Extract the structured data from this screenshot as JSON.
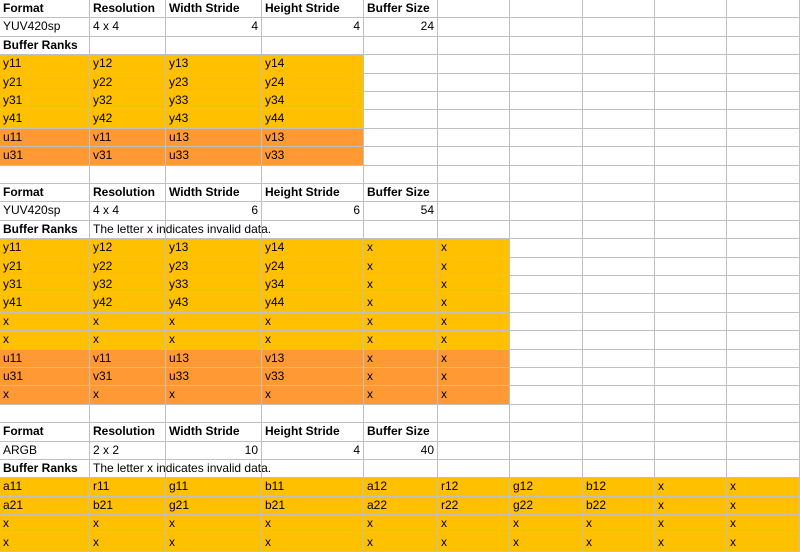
{
  "colors": {
    "luma": "#ffc000",
    "chroma": "#ff9933",
    "grid": "#c0c0c0"
  },
  "sheet": {
    "rows": [
      {
        "cells": [
          {
            "text": "Format",
            "b": 1
          },
          {
            "text": "Resolution",
            "b": 1
          },
          {
            "text": "Width Stride",
            "b": 1
          },
          {
            "text": "Height Stride",
            "b": 1
          },
          {
            "text": "Buffer Size",
            "b": 1
          }
        ]
      },
      {
        "cells": [
          {
            "text": "YUV420sp"
          },
          {
            "text": "4 x 4"
          },
          {
            "text": "4",
            "num": 1
          },
          {
            "text": "4",
            "num": 1
          },
          {
            "text": "24",
            "num": 1
          }
        ]
      },
      {
        "cells": [
          {
            "text": "Buffer Ranks",
            "b": 1
          }
        ]
      },
      {
        "cells": [
          {
            "text": "y11",
            "f": "y"
          },
          {
            "text": "y12",
            "f": "y"
          },
          {
            "text": "y13",
            "f": "y"
          },
          {
            "text": "y14",
            "f": "y"
          }
        ]
      },
      {
        "cells": [
          {
            "text": "y21",
            "f": "y"
          },
          {
            "text": "y22",
            "f": "y"
          },
          {
            "text": "y23",
            "f": "y"
          },
          {
            "text": "y24",
            "f": "y"
          }
        ]
      },
      {
        "cells": [
          {
            "text": "y31",
            "f": "y"
          },
          {
            "text": "y32",
            "f": "y"
          },
          {
            "text": "y33",
            "f": "y"
          },
          {
            "text": "y34",
            "f": "y"
          }
        ]
      },
      {
        "cells": [
          {
            "text": "y41",
            "f": "y"
          },
          {
            "text": "y42",
            "f": "y"
          },
          {
            "text": "y43",
            "f": "y"
          },
          {
            "text": "y44",
            "f": "y"
          }
        ]
      },
      {
        "cells": [
          {
            "text": "u11",
            "f": "u"
          },
          {
            "text": "v11",
            "f": "u"
          },
          {
            "text": "u13",
            "f": "u"
          },
          {
            "text": "v13",
            "f": "u"
          }
        ]
      },
      {
        "cells": [
          {
            "text": "u31",
            "f": "u"
          },
          {
            "text": "v31",
            "f": "u"
          },
          {
            "text": "u33",
            "f": "u"
          },
          {
            "text": "v33",
            "f": "u"
          }
        ]
      },
      {
        "cells": []
      },
      {
        "cells": [
          {
            "text": "Format",
            "b": 1
          },
          {
            "text": "Resolution",
            "b": 1
          },
          {
            "text": "Width Stride",
            "b": 1
          },
          {
            "text": "Height Stride",
            "b": 1
          },
          {
            "text": "Buffer Size",
            "b": 1
          }
        ]
      },
      {
        "cells": [
          {
            "text": "YUV420sp"
          },
          {
            "text": "4 x 4"
          },
          {
            "text": "6",
            "num": 1
          },
          {
            "text": "6",
            "num": 1
          },
          {
            "text": "54",
            "num": 1
          }
        ]
      },
      {
        "cells": [
          {
            "text": "Buffer Ranks",
            "b": 1
          },
          {
            "text": "The letter x indicates invalid data."
          }
        ]
      },
      {
        "cells": [
          {
            "text": "y11",
            "f": "y"
          },
          {
            "text": "y12",
            "f": "y"
          },
          {
            "text": "y13",
            "f": "y"
          },
          {
            "text": "y14",
            "f": "y"
          },
          {
            "text": "x",
            "f": "y"
          },
          {
            "text": "x",
            "f": "y"
          }
        ]
      },
      {
        "cells": [
          {
            "text": "y21",
            "f": "y"
          },
          {
            "text": "y22",
            "f": "y"
          },
          {
            "text": "y23",
            "f": "y"
          },
          {
            "text": "y24",
            "f": "y"
          },
          {
            "text": "x",
            "f": "y"
          },
          {
            "text": "x",
            "f": "y"
          }
        ]
      },
      {
        "cells": [
          {
            "text": "y31",
            "f": "y"
          },
          {
            "text": "y32",
            "f": "y"
          },
          {
            "text": "y33",
            "f": "y"
          },
          {
            "text": "y34",
            "f": "y"
          },
          {
            "text": "x",
            "f": "y"
          },
          {
            "text": "x",
            "f": "y"
          }
        ]
      },
      {
        "cells": [
          {
            "text": "y41",
            "f": "y"
          },
          {
            "text": "y42",
            "f": "y"
          },
          {
            "text": "y43",
            "f": "y"
          },
          {
            "text": "y44",
            "f": "y"
          },
          {
            "text": "x",
            "f": "y"
          },
          {
            "text": "x",
            "f": "y"
          }
        ]
      },
      {
        "cells": [
          {
            "text": "x",
            "f": "y"
          },
          {
            "text": "x",
            "f": "y"
          },
          {
            "text": "x",
            "f": "y"
          },
          {
            "text": "x",
            "f": "y"
          },
          {
            "text": "x",
            "f": "y"
          },
          {
            "text": "x",
            "f": "y"
          }
        ]
      },
      {
        "cells": [
          {
            "text": "x",
            "f": "y"
          },
          {
            "text": "x",
            "f": "y"
          },
          {
            "text": "x",
            "f": "y"
          },
          {
            "text": "x",
            "f": "y"
          },
          {
            "text": "x",
            "f": "y"
          },
          {
            "text": "x",
            "f": "y"
          }
        ]
      },
      {
        "cells": [
          {
            "text": "u11",
            "f": "u"
          },
          {
            "text": "v11",
            "f": "u"
          },
          {
            "text": "u13",
            "f": "u"
          },
          {
            "text": "v13",
            "f": "u"
          },
          {
            "text": "x",
            "f": "u"
          },
          {
            "text": "x",
            "f": "u"
          }
        ]
      },
      {
        "cells": [
          {
            "text": "u31",
            "f": "u"
          },
          {
            "text": "v31",
            "f": "u"
          },
          {
            "text": "u33",
            "f": "u"
          },
          {
            "text": "v33",
            "f": "u"
          },
          {
            "text": "x",
            "f": "u"
          },
          {
            "text": "x",
            "f": "u"
          }
        ]
      },
      {
        "cells": [
          {
            "text": "x",
            "f": "u"
          },
          {
            "text": "x",
            "f": "u"
          },
          {
            "text": "x",
            "f": "u"
          },
          {
            "text": "x",
            "f": "u"
          },
          {
            "text": "x",
            "f": "u"
          },
          {
            "text": "x",
            "f": "u"
          }
        ]
      },
      {
        "cells": []
      },
      {
        "cells": [
          {
            "text": "Format",
            "b": 1
          },
          {
            "text": "Resolution",
            "b": 1
          },
          {
            "text": "Width Stride",
            "b": 1
          },
          {
            "text": "Height Stride",
            "b": 1
          },
          {
            "text": "Buffer Size",
            "b": 1
          }
        ]
      },
      {
        "cells": [
          {
            "text": "ARGB"
          },
          {
            "text": "2 x 2"
          },
          {
            "text": "10",
            "num": 1
          },
          {
            "text": "4",
            "num": 1
          },
          {
            "text": "40",
            "num": 1
          }
        ]
      },
      {
        "cells": [
          {
            "text": "Buffer Ranks",
            "b": 1
          },
          {
            "text": "The letter x indicates invalid data."
          }
        ]
      },
      {
        "cells": [
          {
            "text": "a11",
            "f": "y"
          },
          {
            "text": "r11",
            "f": "y"
          },
          {
            "text": "g11",
            "f": "y"
          },
          {
            "text": "b11",
            "f": "y"
          },
          {
            "text": "a12",
            "f": "y"
          },
          {
            "text": "r12",
            "f": "y"
          },
          {
            "text": "g12",
            "f": "y"
          },
          {
            "text": "b12",
            "f": "y"
          },
          {
            "text": "x",
            "f": "y"
          },
          {
            "text": "x",
            "f": "y"
          }
        ]
      },
      {
        "cells": [
          {
            "text": "a21",
            "f": "y"
          },
          {
            "text": "b21",
            "f": "y"
          },
          {
            "text": "g21",
            "f": "y"
          },
          {
            "text": "b21",
            "f": "y"
          },
          {
            "text": "a22",
            "f": "y"
          },
          {
            "text": "r22",
            "f": "y"
          },
          {
            "text": "g22",
            "f": "y"
          },
          {
            "text": "b22",
            "f": "y"
          },
          {
            "text": "x",
            "f": "y"
          },
          {
            "text": "x",
            "f": "y"
          }
        ]
      },
      {
        "cells": [
          {
            "text": "x",
            "f": "y"
          },
          {
            "text": "x",
            "f": "y"
          },
          {
            "text": "x",
            "f": "y"
          },
          {
            "text": "x",
            "f": "y"
          },
          {
            "text": "x",
            "f": "y"
          },
          {
            "text": "x",
            "f": "y"
          },
          {
            "text": "x",
            "f": "y"
          },
          {
            "text": "x",
            "f": "y"
          },
          {
            "text": "x",
            "f": "y"
          },
          {
            "text": "x",
            "f": "y"
          }
        ]
      },
      {
        "cells": [
          {
            "text": "x",
            "f": "y"
          },
          {
            "text": "x",
            "f": "y"
          },
          {
            "text": "x",
            "f": "y"
          },
          {
            "text": "x",
            "f": "y"
          },
          {
            "text": "x",
            "f": "y"
          },
          {
            "text": "x",
            "f": "y"
          },
          {
            "text": "x",
            "f": "y"
          },
          {
            "text": "x",
            "f": "y"
          },
          {
            "text": "x",
            "f": "y"
          },
          {
            "text": "x",
            "f": "y"
          }
        ]
      }
    ]
  }
}
